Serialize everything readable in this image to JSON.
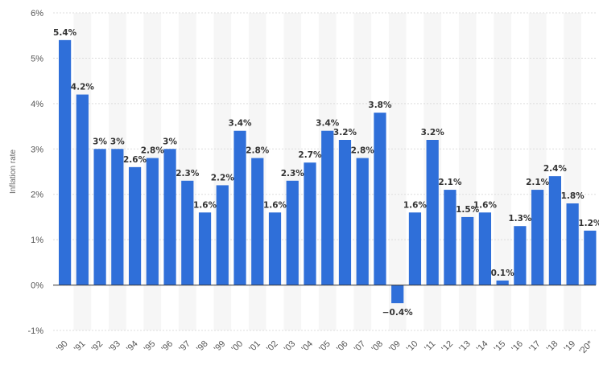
{
  "chart_data": {
    "type": "bar",
    "title": "",
    "xlabel": "",
    "ylabel": "Inflation rate",
    "ylim": [
      -1,
      6
    ],
    "yticks": [
      "-1%",
      "0%",
      "1%",
      "2%",
      "3%",
      "4%",
      "5%",
      "6%"
    ],
    "grid": true,
    "legend": "none",
    "bar_color": "#2f6fd9",
    "categories": [
      "'90",
      "'91",
      "'92",
      "'93",
      "'94",
      "'95",
      "'96",
      "'97",
      "'98",
      "'99",
      "'00",
      "'01",
      "'02",
      "'03",
      "'04",
      "'05",
      "'06",
      "'07",
      "'08",
      "'09",
      "'10",
      "'11",
      "'12",
      "'13",
      "'14",
      "'15",
      "'16",
      "'17",
      "'18",
      "'19",
      "'20*"
    ],
    "values": [
      5.4,
      4.2,
      3,
      3,
      2.6,
      2.8,
      3,
      2.3,
      1.6,
      2.2,
      3.4,
      2.8,
      1.6,
      2.3,
      2.7,
      3.4,
      3.2,
      2.8,
      3.8,
      -0.4,
      1.6,
      3.2,
      2.1,
      1.5,
      1.6,
      0.1,
      1.3,
      2.1,
      2.4,
      1.8,
      1.2
    ],
    "data_labels": [
      "5.4%",
      "4.2%",
      "3%",
      "3%",
      "2.6%",
      "2.8%",
      "3%",
      "2.3%",
      "1.6%",
      "2.2%",
      "3.4%",
      "2.8%",
      "1.6%",
      "2.3%",
      "2.7%",
      "3.4%",
      "3.2%",
      "2.8%",
      "3.8%",
      "−0.4%",
      "1.6%",
      "3.2%",
      "2.1%",
      "1.5%",
      "1.6%",
      "0.1%",
      "1.3%",
      "2.1%",
      "2.4%",
      "1.8%",
      "1.2%"
    ]
  }
}
